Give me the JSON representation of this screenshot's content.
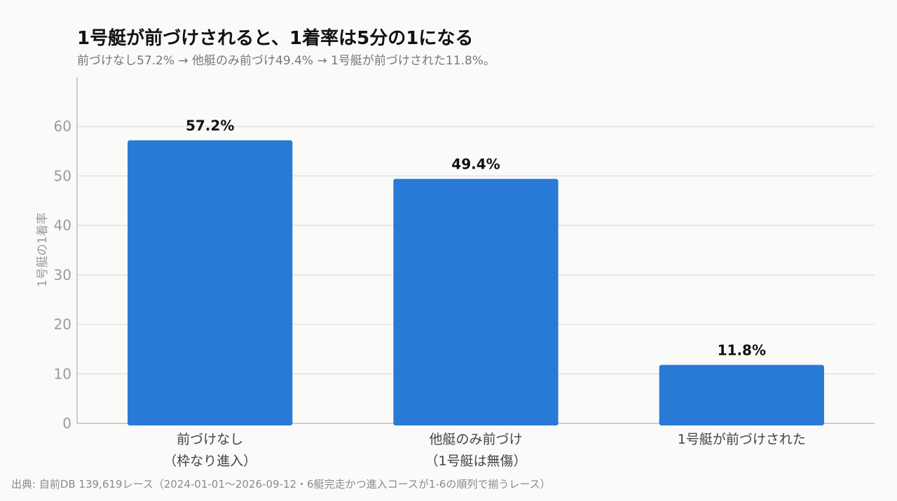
{
  "chart_data": {
    "type": "bar",
    "title": "1号艇が前づけされると、1着率は5分の1になる",
    "subtitle": "前づけなし57.2% → 他艇のみ前づけ49.4% → 1号艇が前づけされた11.8%。",
    "ylabel": "1号艇の1着率",
    "xlabel": "",
    "categories": [
      {
        "line1": "前づけなし",
        "line2": "（枠なり進入）"
      },
      {
        "line1": "他艇のみ前づけ",
        "line2": "（1号艇は無傷）"
      },
      {
        "line1": "1号艇が前づけされた",
        "line2": ""
      }
    ],
    "values": [
      57.2,
      49.4,
      11.8
    ],
    "value_labels": [
      "57.2%",
      "49.4%",
      "11.8%"
    ],
    "ylim": [
      0,
      70
    ],
    "yticks": [
      0,
      10,
      20,
      30,
      40,
      50,
      60
    ],
    "grid": true,
    "legend": "none",
    "bar_color": "#2979d6",
    "source": "出典: 自前DB 139,619レース（2024-01-01〜2026-09-12・6艇完走かつ進入コースが1-6の順列で揃うレース）"
  }
}
